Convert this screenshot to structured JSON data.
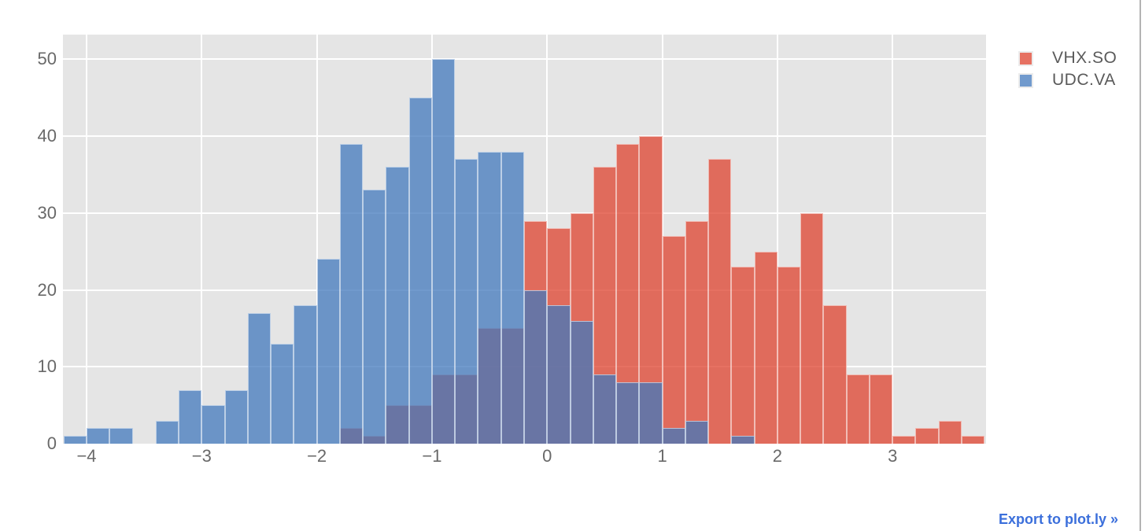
{
  "footer": {
    "export_label": "Export to plot.ly »"
  },
  "colors": {
    "plot_background": "#e5e5e5",
    "gridline": "#ffffff",
    "tick_label": "#696969",
    "legend_text": "#5a5a5a",
    "export_link": "#3b6fdb",
    "series_red_base": "#de422d",
    "series_blue_base": "#4278bc",
    "overlap_visible": "#6a74a4"
  },
  "chart_data": {
    "type": "bar",
    "subtype": "histogram-overlay",
    "title": "",
    "xlabel": "",
    "ylabel": "",
    "barmode": "overlay",
    "opacity": 0.75,
    "bin_width": 0.2,
    "grid": true,
    "legend_position": "top-right",
    "x_range": [
      -4.205,
      3.812
    ],
    "y_range": [
      0,
      53.2
    ],
    "x_ticks": [
      -4,
      -3,
      -2,
      -1,
      0,
      1,
      2,
      3
    ],
    "x_tick_labels": [
      "−4",
      "−3",
      "−2",
      "−1",
      "0",
      "1",
      "2",
      "3"
    ],
    "y_ticks": [
      0,
      10,
      20,
      30,
      40,
      50
    ],
    "y_tick_labels": [
      "0",
      "10",
      "20",
      "30",
      "40",
      "50"
    ],
    "series": [
      {
        "name": "VHX.SO",
        "color": "rgba(222,66,45,0.75)",
        "bin_start": -1.8,
        "values": [
          2,
          1,
          5,
          5,
          9,
          9,
          15,
          15,
          29,
          28,
          30,
          36,
          39,
          40,
          27,
          29,
          37,
          23,
          25,
          23,
          30,
          18,
          9,
          9,
          1,
          2,
          3,
          1
        ]
      },
      {
        "name": "UDC.VA",
        "color": "rgba(66,120,188,0.75)",
        "bin_start": -4.2,
        "values": [
          1,
          2,
          2,
          0,
          3,
          7,
          5,
          7,
          17,
          13,
          18,
          24,
          39,
          33,
          36,
          45,
          50,
          37,
          38,
          38,
          20,
          18,
          16,
          9,
          8,
          8,
          2,
          3,
          0,
          1
        ]
      }
    ]
  }
}
